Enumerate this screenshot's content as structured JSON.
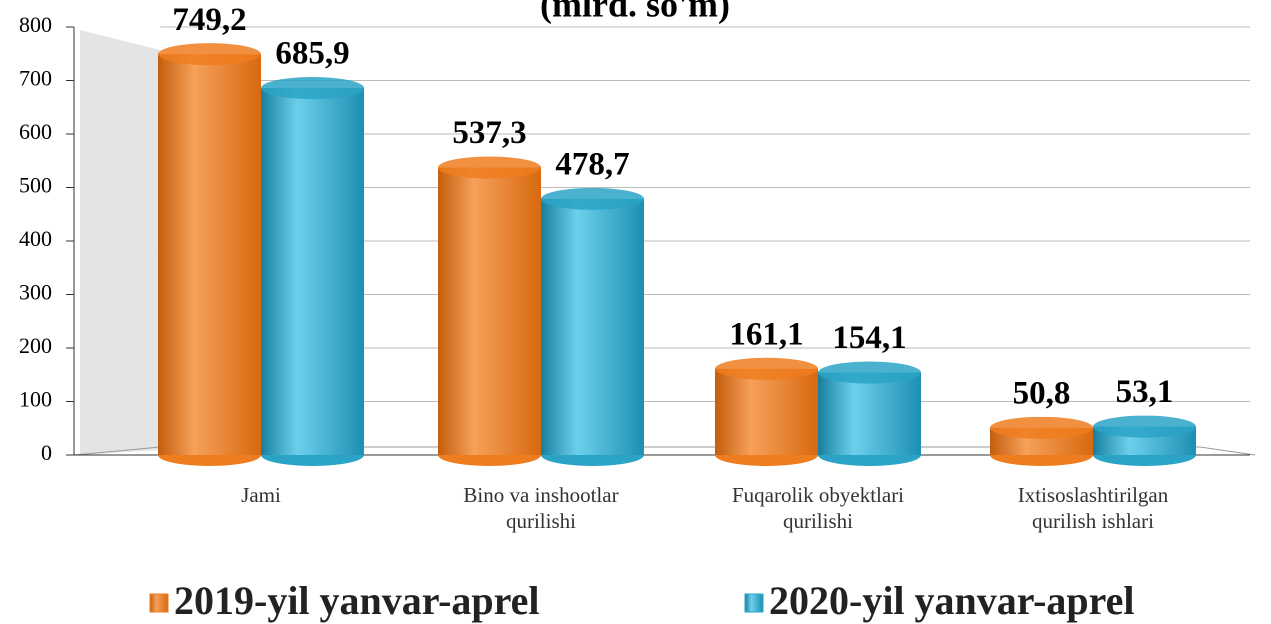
{
  "chart_data": {
    "type": "bar",
    "title": "(mlrd. so'm)",
    "categories": [
      "Jami",
      "Bino va inshootlar qurilishi",
      "Fuqarolik obyektlari qurilishi",
      "Ixtisoslashtirilgan qurilish ishlari"
    ],
    "series": [
      {
        "name": "2019-yil yanvar-aprel",
        "color": "#ee7d1f",
        "values": [
          749.2,
          537.3,
          161.1,
          50.8
        ],
        "value_labels": [
          "749,2",
          "537,3",
          "161,1",
          "50,8"
        ]
      },
      {
        "name": "2020-yil yanvar-aprel",
        "color": "#2aa3c6",
        "values": [
          685.9,
          478.7,
          154.1,
          53.1
        ],
        "value_labels": [
          "685,9",
          "478,7",
          "154,1",
          "53,1"
        ]
      }
    ],
    "ylim": [
      0,
      800
    ],
    "yticks": [
      0,
      100,
      200,
      300,
      400,
      500,
      600,
      700,
      800
    ],
    "grid": true,
    "legend": "bottom"
  }
}
